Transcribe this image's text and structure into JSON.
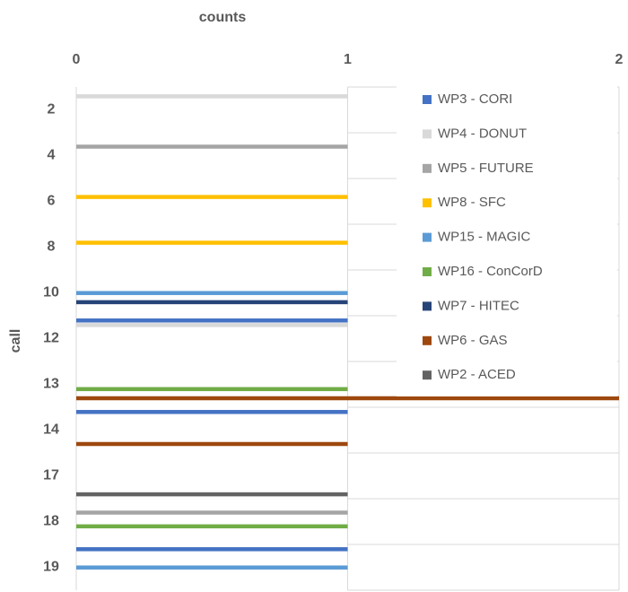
{
  "chart_data": {
    "type": "barh",
    "x_label": "counts",
    "y_label": "call",
    "categories": [
      "2",
      "4",
      "6",
      "8",
      "10",
      "12",
      "13",
      "14",
      "17",
      "18",
      "19"
    ],
    "xlim": [
      0,
      2
    ],
    "xticks": [
      0,
      1,
      2
    ],
    "grid": true,
    "legend": "right",
    "series": [
      {
        "name": "WP3 - CORI",
        "color": "#4472c4",
        "values": [
          null,
          null,
          null,
          null,
          null,
          1,
          null,
          1,
          null,
          null,
          1
        ]
      },
      {
        "name": "WP4 - DONUT",
        "color": "#d9d9d9",
        "values": [
          1,
          null,
          null,
          null,
          null,
          1,
          null,
          null,
          null,
          null,
          null
        ]
      },
      {
        "name": "WP5 - FUTURE",
        "color": "#a5a5a5",
        "values": [
          null,
          1,
          null,
          null,
          null,
          null,
          null,
          null,
          null,
          1,
          null
        ]
      },
      {
        "name": "WP8 - SFC",
        "color": "#ffc000",
        "values": [
          null,
          null,
          1,
          1,
          null,
          null,
          null,
          null,
          null,
          null,
          null
        ]
      },
      {
        "name": "WP15 - MAGIC",
        "color": "#5b9bd5",
        "values": [
          null,
          null,
          null,
          null,
          1,
          null,
          null,
          null,
          null,
          null,
          1
        ]
      },
      {
        "name": "WP16 - ConCorD",
        "color": "#70ad47",
        "values": [
          null,
          null,
          null,
          null,
          null,
          null,
          1,
          null,
          null,
          1,
          null
        ]
      },
      {
        "name": "WP7 - HITEC",
        "color": "#264478",
        "values": [
          null,
          null,
          null,
          null,
          1,
          null,
          null,
          null,
          null,
          null,
          null
        ]
      },
      {
        "name": "WP6 - GAS",
        "color": "#9e480e",
        "values": [
          null,
          null,
          null,
          null,
          null,
          null,
          2,
          1,
          null,
          null,
          null
        ]
      },
      {
        "name": "WP2 - ACED",
        "color": "#636363",
        "values": [
          null,
          null,
          null,
          null,
          null,
          null,
          null,
          null,
          1,
          null,
          null
        ]
      }
    ]
  }
}
